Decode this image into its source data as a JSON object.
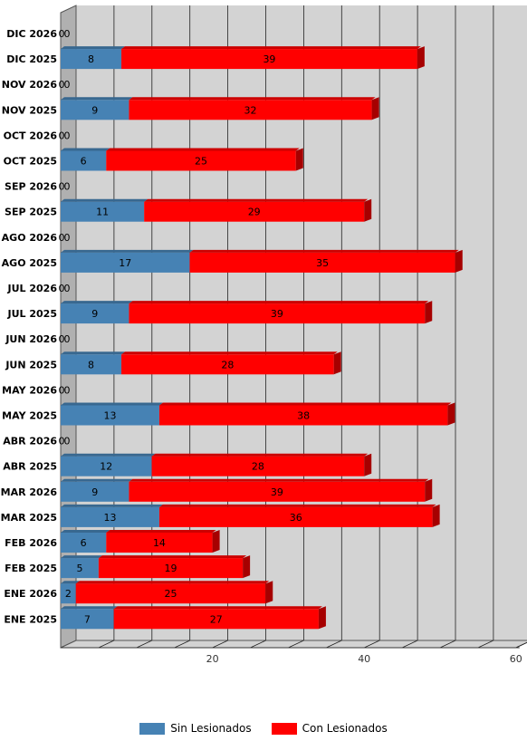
{
  "chart_data": {
    "type": "bar",
    "orientation": "horizontal",
    "stacked": true,
    "categories": [
      "DIC 2026",
      "DIC 2025",
      "NOV 2026",
      "NOV 2025",
      "OCT 2026",
      "OCT 2025",
      "SEP 2026",
      "SEP 2025",
      "AGO 2026",
      "AGO 2025",
      "JUL 2026",
      "JUL 2025",
      "JUN 2026",
      "JUN 2025",
      "MAY 2026",
      "MAY 2025",
      "ABR 2026",
      "ABR 2025",
      "MAR 2026",
      "MAR 2025",
      "FEB 2026",
      "FEB 2025",
      "ENE 2026",
      "ENE 2025"
    ],
    "series": [
      {
        "name": "Sin Lesionados",
        "color": "#4682b4",
        "values": [
          0,
          8,
          0,
          9,
          0,
          6,
          0,
          11,
          0,
          17,
          0,
          9,
          0,
          8,
          0,
          13,
          0,
          12,
          9,
          13,
          6,
          5,
          2,
          7
        ]
      },
      {
        "name": "Con Lesionados",
        "color": "#ff0000",
        "values": [
          0,
          39,
          0,
          32,
          0,
          25,
          0,
          29,
          0,
          35,
          0,
          39,
          0,
          28,
          0,
          38,
          0,
          28,
          39,
          36,
          14,
          19,
          25,
          27
        ]
      }
    ],
    "xlim": [
      0,
      60
    ],
    "xticks": [
      20,
      40,
      60
    ],
    "grid": true,
    "legend_position": "bottom"
  },
  "legend": {
    "sin": "Sin Lesionados",
    "con": "Con Lesionados"
  }
}
